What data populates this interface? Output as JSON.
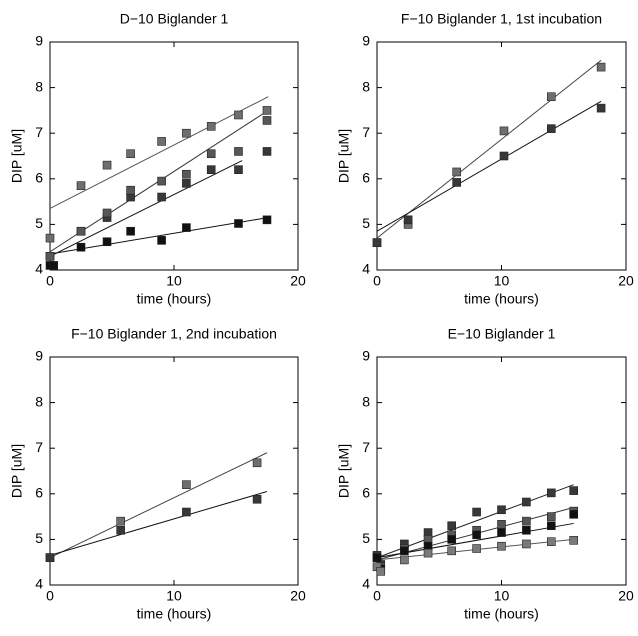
{
  "chart_data": [
    {
      "type": "scatter",
      "title": "D−10 Biglander 1",
      "xlabel": "time (hours)",
      "ylabel": "DIP [uM]",
      "xlim": [
        0,
        20
      ],
      "ylim": [
        4,
        9
      ],
      "xticks": [
        0,
        10,
        20
      ],
      "yticks": [
        4,
        5,
        6,
        7,
        8,
        9
      ],
      "series": [
        {
          "color": "#111111",
          "x": [
            0,
            0.3,
            2.5,
            4.6,
            6.5,
            9,
            11,
            15.2,
            17.5
          ],
          "values": [
            4.1,
            4.1,
            4.5,
            4.62,
            4.85,
            4.65,
            4.93,
            5.02,
            5.1
          ]
        },
        {
          "color": "#383838",
          "x": [
            0,
            2.5,
            4.6,
            6.5,
            9,
            11,
            13,
            15.2,
            17.5
          ],
          "values": [
            4.3,
            4.85,
            5.15,
            5.6,
            5.6,
            5.9,
            6.2,
            6.2,
            6.6
          ]
        },
        {
          "color": "#575757",
          "x": [
            0,
            2.5,
            4.6,
            6.5,
            9,
            11,
            13,
            15.2,
            17.5
          ],
          "values": [
            4.3,
            4.85,
            5.25,
            5.75,
            5.95,
            6.1,
            6.55,
            6.6,
            7.28
          ]
        },
        {
          "color": "#6e6e6e",
          "x": [
            0,
            2.5,
            4.6,
            6.5,
            9,
            11,
            13,
            15.2,
            17.5
          ],
          "values": [
            4.7,
            5.85,
            6.3,
            6.55,
            6.82,
            7,
            7.15,
            7.4,
            7.5
          ]
        }
      ],
      "fits": [
        {
          "color": "#111111",
          "x": [
            0,
            17.6
          ],
          "values": [
            4.35,
            5.15
          ]
        },
        {
          "color": "#111111",
          "x": [
            0,
            15.5
          ],
          "values": [
            4.3,
            6.4
          ]
        },
        {
          "color": "#333333",
          "x": [
            0,
            17.6
          ],
          "values": [
            4.4,
            7.5
          ]
        },
        {
          "color": "#555555",
          "x": [
            0,
            17.6
          ],
          "values": [
            5.35,
            7.8
          ]
        }
      ]
    },
    {
      "type": "scatter",
      "title": "F−10 Biglander 1, 1st incubation",
      "xlabel": "time (hours)",
      "ylabel": "DIP [uM]",
      "xlim": [
        0,
        20
      ],
      "ylim": [
        4,
        9
      ],
      "xticks": [
        0,
        10,
        20
      ],
      "yticks": [
        4,
        5,
        6,
        7,
        8,
        9
      ],
      "series": [
        {
          "color": "#6e6e6e",
          "x": [
            0,
            2.5,
            6.4,
            10.2,
            14,
            18
          ],
          "values": [
            4.6,
            5.0,
            6.15,
            7.05,
            7.8,
            8.45
          ]
        },
        {
          "color": "#383838",
          "x": [
            0,
            2.5,
            6.4,
            10.2,
            14,
            18
          ],
          "values": [
            4.6,
            5.1,
            5.92,
            6.5,
            7.1,
            7.55
          ]
        }
      ],
      "fits": [
        {
          "color": "#444444",
          "x": [
            0,
            18
          ],
          "values": [
            4.7,
            8.6
          ]
        },
        {
          "color": "#111111",
          "x": [
            0,
            18
          ],
          "values": [
            4.85,
            7.7
          ]
        }
      ]
    },
    {
      "type": "scatter",
      "title": "F−10 Biglander 1, 2nd incubation",
      "xlabel": "time (hours)",
      "ylabel": "DIP [uM]",
      "xlim": [
        0,
        20
      ],
      "ylim": [
        4,
        9
      ],
      "xticks": [
        0,
        10,
        20
      ],
      "yticks": [
        4,
        5,
        6,
        7,
        8,
        9
      ],
      "series": [
        {
          "color": "#6e6e6e",
          "x": [
            0,
            5.7,
            11,
            16.7
          ],
          "values": [
            4.6,
            5.4,
            6.2,
            6.68
          ]
        },
        {
          "color": "#383838",
          "x": [
            0,
            5.7,
            11,
            16.7
          ],
          "values": [
            4.6,
            5.2,
            5.6,
            5.88
          ]
        }
      ],
      "fits": [
        {
          "color": "#444444",
          "x": [
            0,
            17.5
          ],
          "values": [
            4.6,
            6.9
          ]
        },
        {
          "color": "#111111",
          "x": [
            0,
            17.5
          ],
          "values": [
            4.65,
            6.05
          ]
        }
      ]
    },
    {
      "type": "scatter",
      "title": "E−10 Biglander 1",
      "xlabel": "time (hours)",
      "ylabel": "DIP [uM]",
      "xlim": [
        0,
        20
      ],
      "ylim": [
        4,
        9
      ],
      "xticks": [
        0,
        10,
        20
      ],
      "yticks": [
        4,
        5,
        6,
        7,
        8,
        9
      ],
      "series": [
        {
          "color": "#383838",
          "x": [
            0,
            0.3,
            2.2,
            4.1,
            6,
            8,
            10,
            12,
            14,
            15.8
          ],
          "values": [
            4.65,
            4.45,
            4.9,
            5.15,
            5.3,
            5.6,
            5.65,
            5.82,
            6.02,
            6.07
          ]
        },
        {
          "color": "#575757",
          "x": [
            0,
            0.3,
            2.2,
            4.1,
            6,
            8,
            10,
            12,
            14,
            15.8
          ],
          "values": [
            4.6,
            4.4,
            4.8,
            5,
            5.1,
            5.2,
            5.33,
            5.4,
            5.5,
            5.62
          ]
        },
        {
          "color": "#111111",
          "x": [
            0,
            0.3,
            2.2,
            4.1,
            6,
            8,
            10,
            12,
            14,
            15.8
          ],
          "values": [
            4.6,
            4.35,
            4.75,
            4.85,
            5.0,
            5.1,
            5.15,
            5.2,
            5.3,
            5.55
          ]
        },
        {
          "color": "#7a7a7a",
          "x": [
            0,
            0.3,
            2.2,
            4.1,
            6,
            8,
            10,
            12,
            14,
            15.8
          ],
          "values": [
            4.4,
            4.3,
            4.55,
            4.7,
            4.75,
            4.8,
            4.85,
            4.9,
            4.95,
            4.98
          ]
        }
      ],
      "fits": [
        {
          "color": "#222222",
          "x": [
            0,
            15.8
          ],
          "values": [
            4.6,
            6.2
          ]
        },
        {
          "color": "#333333",
          "x": [
            0,
            15.8
          ],
          "values": [
            4.55,
            5.7
          ]
        },
        {
          "color": "#111111",
          "x": [
            0,
            15.8
          ],
          "values": [
            4.6,
            5.35
          ]
        },
        {
          "color": "#555555",
          "x": [
            0,
            15.8
          ],
          "values": [
            4.55,
            5.0
          ]
        }
      ]
    }
  ]
}
